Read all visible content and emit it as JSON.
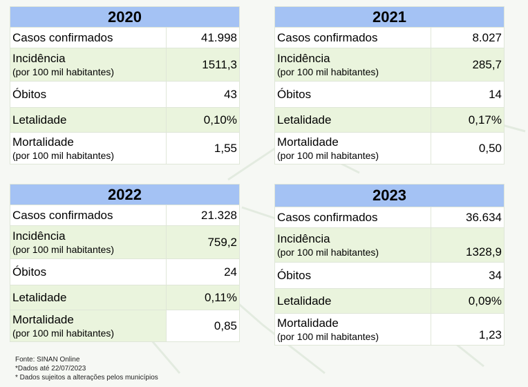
{
  "tables": [
    {
      "year": "2020",
      "rows": {
        "casos": {
          "label": "Casos confirmados",
          "value": "41.998"
        },
        "incidencia": {
          "label": "Incidência",
          "sub": "(por 100 mil habitantes)",
          "value": "1511,3"
        },
        "obitos": {
          "label": "Óbitos",
          "value": "43"
        },
        "letalidade": {
          "label": "Letalidade",
          "value": "0,10%"
        },
        "mortalidade": {
          "label": "Mortalidade",
          "sub": "(por 100 mil habitantes)",
          "value": "1,55"
        }
      }
    },
    {
      "year": "2021",
      "rows": {
        "casos": {
          "label": "Casos confirmados",
          "value": "8.027"
        },
        "incidencia": {
          "label": "Incidência",
          "sub": "(por 100 mil habitantes)",
          "value": "285,7"
        },
        "obitos": {
          "label": "Óbitos",
          "value": "14"
        },
        "letalidade": {
          "label": "Letalidade",
          "value": "0,17%"
        },
        "mortalidade": {
          "label": "Mortalidade",
          "sub": "(por 100 mil habitantes)",
          "value": "0,50"
        }
      }
    },
    {
      "year": "2022",
      "rows": {
        "casos": {
          "label": "Casos confirmados",
          "value": "21.328"
        },
        "incidencia": {
          "label": "Incidência",
          "sub": "(por 100 mil habitantes)",
          "value": "759,2"
        },
        "obitos": {
          "label": "Óbitos",
          "value": "24"
        },
        "letalidade": {
          "label": "Letalidade",
          "value": "0,11%"
        },
        "mortalidade": {
          "label": "Mortalidade",
          "sub": "(por 100 mil habitantes)",
          "value": "0,85"
        }
      }
    },
    {
      "year": "2023",
      "rows": {
        "casos": {
          "label": "Casos confirmados",
          "value": "36.634"
        },
        "incidencia": {
          "label": "Incidência",
          "sub": "(por 100 mil habitantes)",
          "value": "1328,9"
        },
        "obitos": {
          "label": "Óbitos",
          "value": "34"
        },
        "letalidade": {
          "label": "Letalidade",
          "value": "0,09%"
        },
        "mortalidade": {
          "label": "Mortalidade",
          "sub": "(por 100 mil habitantes)",
          "value": "1,23"
        }
      }
    }
  ],
  "footer": {
    "source": "Fonte: SINAN Online",
    "date_note": "*Dados até 22/07/2023",
    "change_note": "* Dados sujeitos a alterações pelos municípios"
  },
  "colors": {
    "header_blue": "#a4c2f4",
    "row_green": "#eaf4dd"
  }
}
